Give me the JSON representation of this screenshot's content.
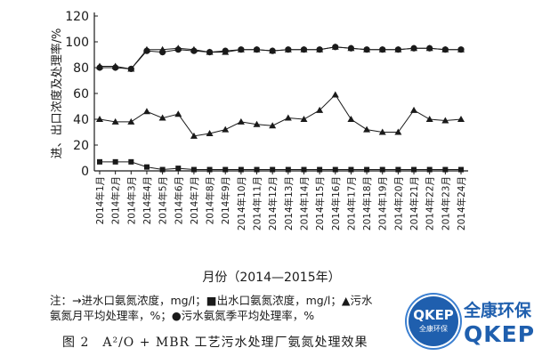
{
  "chart_data": {
    "type": "line",
    "ylabel": "进、出口浓度及处理率/%",
    "xlabel": "月份（2014—2015年）",
    "ylim": [
      0,
      120
    ],
    "yticks": [
      0,
      20,
      40,
      60,
      80,
      100,
      120
    ],
    "grid": false,
    "categories": [
      "2014年1月",
      "2014年2月",
      "2014年3月",
      "2014年4月",
      "2014年5月",
      "2014年6月",
      "2014年7月",
      "2014年8月",
      "2014年9月",
      "2014年10月",
      "2014年11月",
      "2014年12月",
      "2014年13月",
      "2014年14月",
      "2014年15月",
      "2014年16月",
      "2014年17月",
      "2014年18月",
      "2014年19月",
      "2014年20月",
      "2014年21月",
      "2014年22月",
      "2014年23月",
      "2014年24月"
    ],
    "series": [
      {
        "key": "inlet",
        "marker": "triangle",
        "values": [
          40,
          38,
          38,
          46,
          41,
          44,
          27,
          29,
          32,
          38,
          36,
          35,
          41,
          40,
          47,
          59,
          40,
          32,
          30,
          30,
          47,
          40,
          39,
          40
        ]
      },
      {
        "key": "outlet",
        "marker": "square",
        "values": [
          7,
          7,
          7,
          3,
          1,
          2,
          1,
          1,
          1,
          1,
          1,
          1,
          1,
          1,
          1,
          1,
          1,
          1,
          1,
          1,
          1,
          1,
          1,
          1
        ]
      },
      {
        "key": "monthly_rate",
        "marker": "triangle",
        "values": [
          81,
          81,
          79,
          94,
          94,
          95,
          94,
          92,
          92,
          94,
          94,
          93,
          94,
          94,
          94,
          96,
          95,
          94,
          94,
          94,
          95,
          95,
          94,
          94
        ]
      },
      {
        "key": "seasonal_rate",
        "marker": "circle",
        "values": [
          80,
          80,
          79,
          93,
          92,
          94,
          93,
          92,
          93,
          94,
          94,
          93,
          94,
          94,
          94,
          96,
          95,
          94,
          94,
          94,
          95,
          95,
          94,
          94
        ]
      }
    ]
  },
  "legend": {
    "line1": "注：→进水口氨氮浓度，mg/l；■出水口氨氮浓度，mg/l；▲污水",
    "line2": "氨氮月平均处理率，%；●污水氨氮季平均处理率，%"
  },
  "caption": "图 2　A²/O + MBR 工艺污水处理厂氨氮处理效果",
  "logo": {
    "badge_text": "QKEP",
    "badge_subtext": "全康环保",
    "name_cn": "全康环保",
    "name_en": "QKEP",
    "primary_color": "#1f5fae"
  }
}
